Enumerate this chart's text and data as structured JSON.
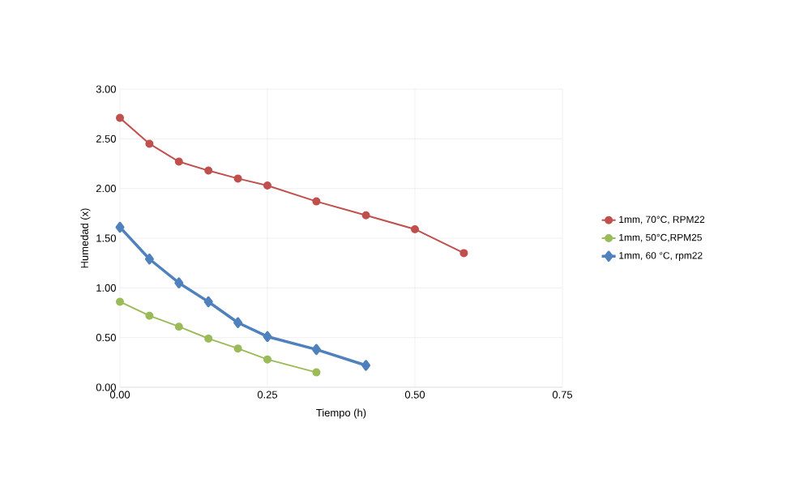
{
  "chart_data": {
    "type": "line",
    "xlabel": "Tiempo (h)",
    "ylabel": "Humedad (x)",
    "xlim": [
      0,
      0.75
    ],
    "ylim": [
      0,
      3
    ],
    "xticks": [
      {
        "value": 0,
        "label": "0.00"
      },
      {
        "value": 0.25,
        "label": "0.25"
      },
      {
        "value": 0.5,
        "label": "0.50"
      },
      {
        "value": 0.75,
        "label": "0.75"
      }
    ],
    "yticks": [
      {
        "value": 0,
        "label": "0.00"
      },
      {
        "value": 0.5,
        "label": "0.50"
      },
      {
        "value": 1,
        "label": "1.00"
      },
      {
        "value": 1.5,
        "label": "1.50"
      },
      {
        "value": 2,
        "label": "2.00"
      },
      {
        "value": 2.5,
        "label": "2.50"
      },
      {
        "value": 3,
        "label": "3.00"
      }
    ],
    "grid": true,
    "legend": "right",
    "series": [
      {
        "name": "1mm, 70°C, RPM22",
        "color": "#c0504d",
        "marker": "circle",
        "x": [
          0,
          0.05,
          0.1,
          0.15,
          0.2,
          0.25,
          0.333,
          0.417,
          0.5,
          0.583
        ],
        "values": [
          2.71,
          2.45,
          2.27,
          2.18,
          2.1,
          2.03,
          1.87,
          1.73,
          1.59,
          1.35
        ]
      },
      {
        "name": "1mm, 50°C,RPM25",
        "color": "#9bbb59",
        "marker": "circle",
        "x": [
          0,
          0.05,
          0.1,
          0.15,
          0.2,
          0.25,
          0.333
        ],
        "values": [
          0.86,
          0.72,
          0.61,
          0.49,
          0.39,
          0.28,
          0.15
        ]
      },
      {
        "name": "1mm, 60 °C, rpm22",
        "color": "#4f81bd",
        "marker": "diamond",
        "x": [
          0,
          0.05,
          0.1,
          0.15,
          0.2,
          0.25,
          0.333,
          0.417
        ],
        "values": [
          1.61,
          1.29,
          1.05,
          0.86,
          0.65,
          0.51,
          0.38,
          0.22
        ]
      }
    ]
  }
}
